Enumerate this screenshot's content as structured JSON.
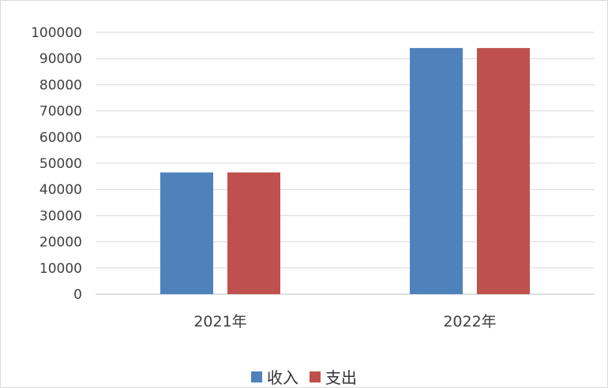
{
  "chart_data": {
    "type": "bar",
    "categories": [
      "2021年",
      "2022年"
    ],
    "series": [
      {
        "name": "收入",
        "values": [
          46500,
          94000
        ],
        "color": "#4f81bd"
      },
      {
        "name": "支出",
        "values": [
          46500,
          94000
        ],
        "color": "#c0504d"
      }
    ],
    "ylim": [
      0,
      100000
    ],
    "yticks": [
      0,
      10000,
      20000,
      30000,
      40000,
      50000,
      60000,
      70000,
      80000,
      90000,
      100000
    ],
    "grid": true,
    "legend_position": "bottom",
    "title": "",
    "xlabel": "",
    "ylabel": ""
  }
}
